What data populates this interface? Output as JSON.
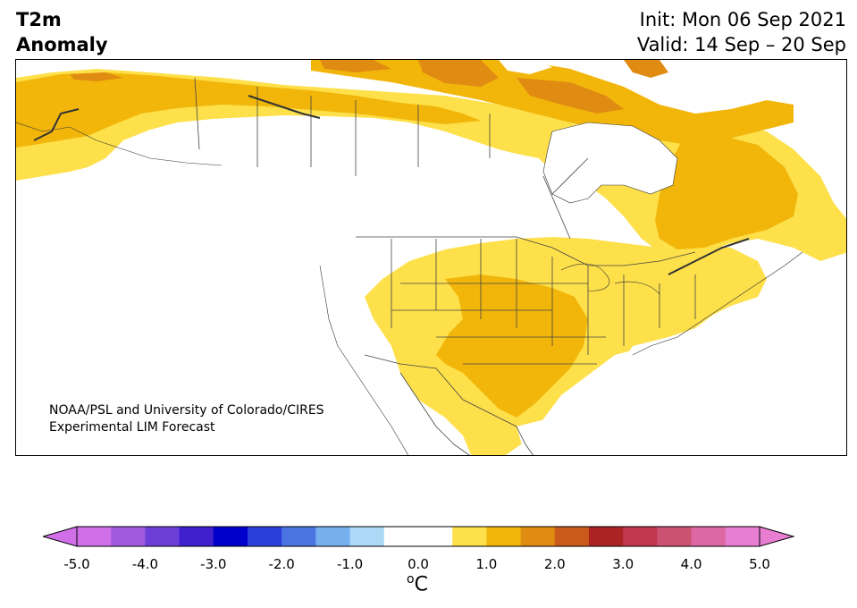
{
  "title": {
    "line1": "T2m",
    "line2": "Anomaly"
  },
  "validity": {
    "init": "Init: Mon 06 Sep 2021",
    "valid": "Valid: 14 Sep – 20 Sep"
  },
  "credit": {
    "line1": "NOAA/PSL and University of Colorado/CIRES",
    "line2": "Experimental LIM Forecast"
  },
  "colorbar": {
    "ticks": [
      "-5.0",
      "-4.0",
      "-3.0",
      "-2.0",
      "-1.0",
      "0.0",
      "1.0",
      "2.0",
      "3.0",
      "4.0",
      "5.0"
    ],
    "unit_base": "o",
    "unit_symbol": "C",
    "colors": [
      "#d06fe8",
      "#a15be0",
      "#6d3fd8",
      "#3f20cc",
      "#0000cc",
      "#2b3fd9",
      "#4b74e2",
      "#77b0ef",
      "#acd9f6",
      "#ffffff",
      "#ffffff",
      "#fde04a",
      "#f2b60b",
      "#e08b12",
      "#c95a1c",
      "#ad2324",
      "#c1394f",
      "#cc5272",
      "#dc69a4",
      "#e87ed2"
    ],
    "under_color": "#d06fe8",
    "over_color": "#e87ed2"
  },
  "anomaly_colors": {
    "light": "#fde04a",
    "medium": "#f2b60b",
    "dark": "#e08b12"
  }
}
